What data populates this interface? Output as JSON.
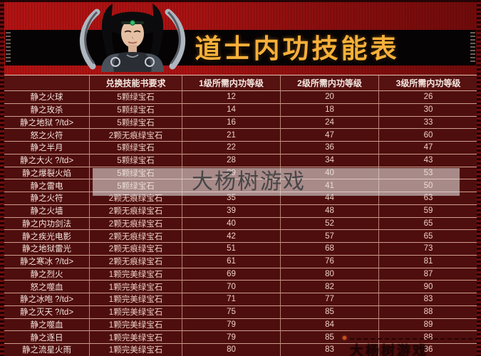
{
  "header": {
    "title": "道士内功技能表",
    "portrait": "taoist-heroine-portrait"
  },
  "watermarks": {
    "center": "大杨树游戏",
    "bottom_right": "大杨树游戏"
  },
  "colors": {
    "page_red": "#8c1010",
    "banner_red": "#a81212",
    "band_black": "#060304",
    "title_gold": "#f6b03a",
    "row_bg": "#4f0e0e",
    "grid_line": "#e0b2a0",
    "cell_text": "#eccfc4",
    "watermark_box": "rgba(233,230,227,0.58)",
    "watermark_text": "#474747"
  },
  "table": {
    "headers": [
      "",
      "兑换技能书要求",
      "1级所需内功等级",
      "2级所需内功等级",
      "3级所需内功等级"
    ],
    "rows": [
      [
        "静之火球",
        "5颗绿宝石",
        "12",
        "20",
        "26"
      ],
      [
        "静之玫杀",
        "5颗绿宝石",
        "14",
        "18",
        "30"
      ],
      [
        "静之地狱 ?/td>",
        "5颗绿宝石",
        "16",
        "24",
        "33"
      ],
      [
        "怒之火符",
        "2颗无痕绿宝石",
        "21",
        "47",
        "60"
      ],
      [
        "静之半月",
        "5颗绿宝石",
        "22",
        "36",
        "47"
      ],
      [
        "静之大火 ?/td>",
        "5颗绿宝石",
        "28",
        "34",
        "43"
      ],
      [
        "静之爆裂火焰",
        "5颗绿宝石",
        "29",
        "40",
        "53"
      ],
      [
        "静之雷电",
        "5颗绿宝石",
        "",
        "41",
        "50"
      ],
      [
        "静之火符",
        "2颗无痕绿宝石",
        "35",
        "44",
        "63"
      ],
      [
        "静之火墙",
        "2颗无痕绿宝石",
        "39",
        "48",
        "59"
      ],
      [
        "静之内功剑法",
        "2颗无痕绿宝石",
        "40",
        "52",
        "65"
      ],
      [
        "静之疾光电影",
        "2颗无痕绿宝石",
        "42",
        "57",
        "65"
      ],
      [
        "静之地狱雷光",
        "2颗无痕绿宝石",
        "51",
        "68",
        "73"
      ],
      [
        "静之寒冰 ?/td>",
        "2颗无痕绿宝石",
        "61",
        "76",
        "81"
      ],
      [
        "静之烈火",
        "1颗完美绿宝石",
        "69",
        "80",
        "87"
      ],
      [
        "怒之噬血",
        "1颗完美绿宝石",
        "70",
        "82",
        "90"
      ],
      [
        "静之冰咆 ?/td>",
        "1颗完美绿宝石",
        "71",
        "77",
        "83"
      ],
      [
        "静之灭天 ?/td>",
        "1颗完美绿宝石",
        "75",
        "85",
        "88"
      ],
      [
        "静之噬血",
        "1颗完美绿宝石",
        "79",
        "84",
        "89"
      ],
      [
        "静之逐日",
        "1颗完美绿宝石",
        "79",
        "85",
        "88"
      ],
      [
        "静之流星火雨",
        "1颗完美绿宝石",
        "80",
        "83",
        "86"
      ]
    ]
  }
}
